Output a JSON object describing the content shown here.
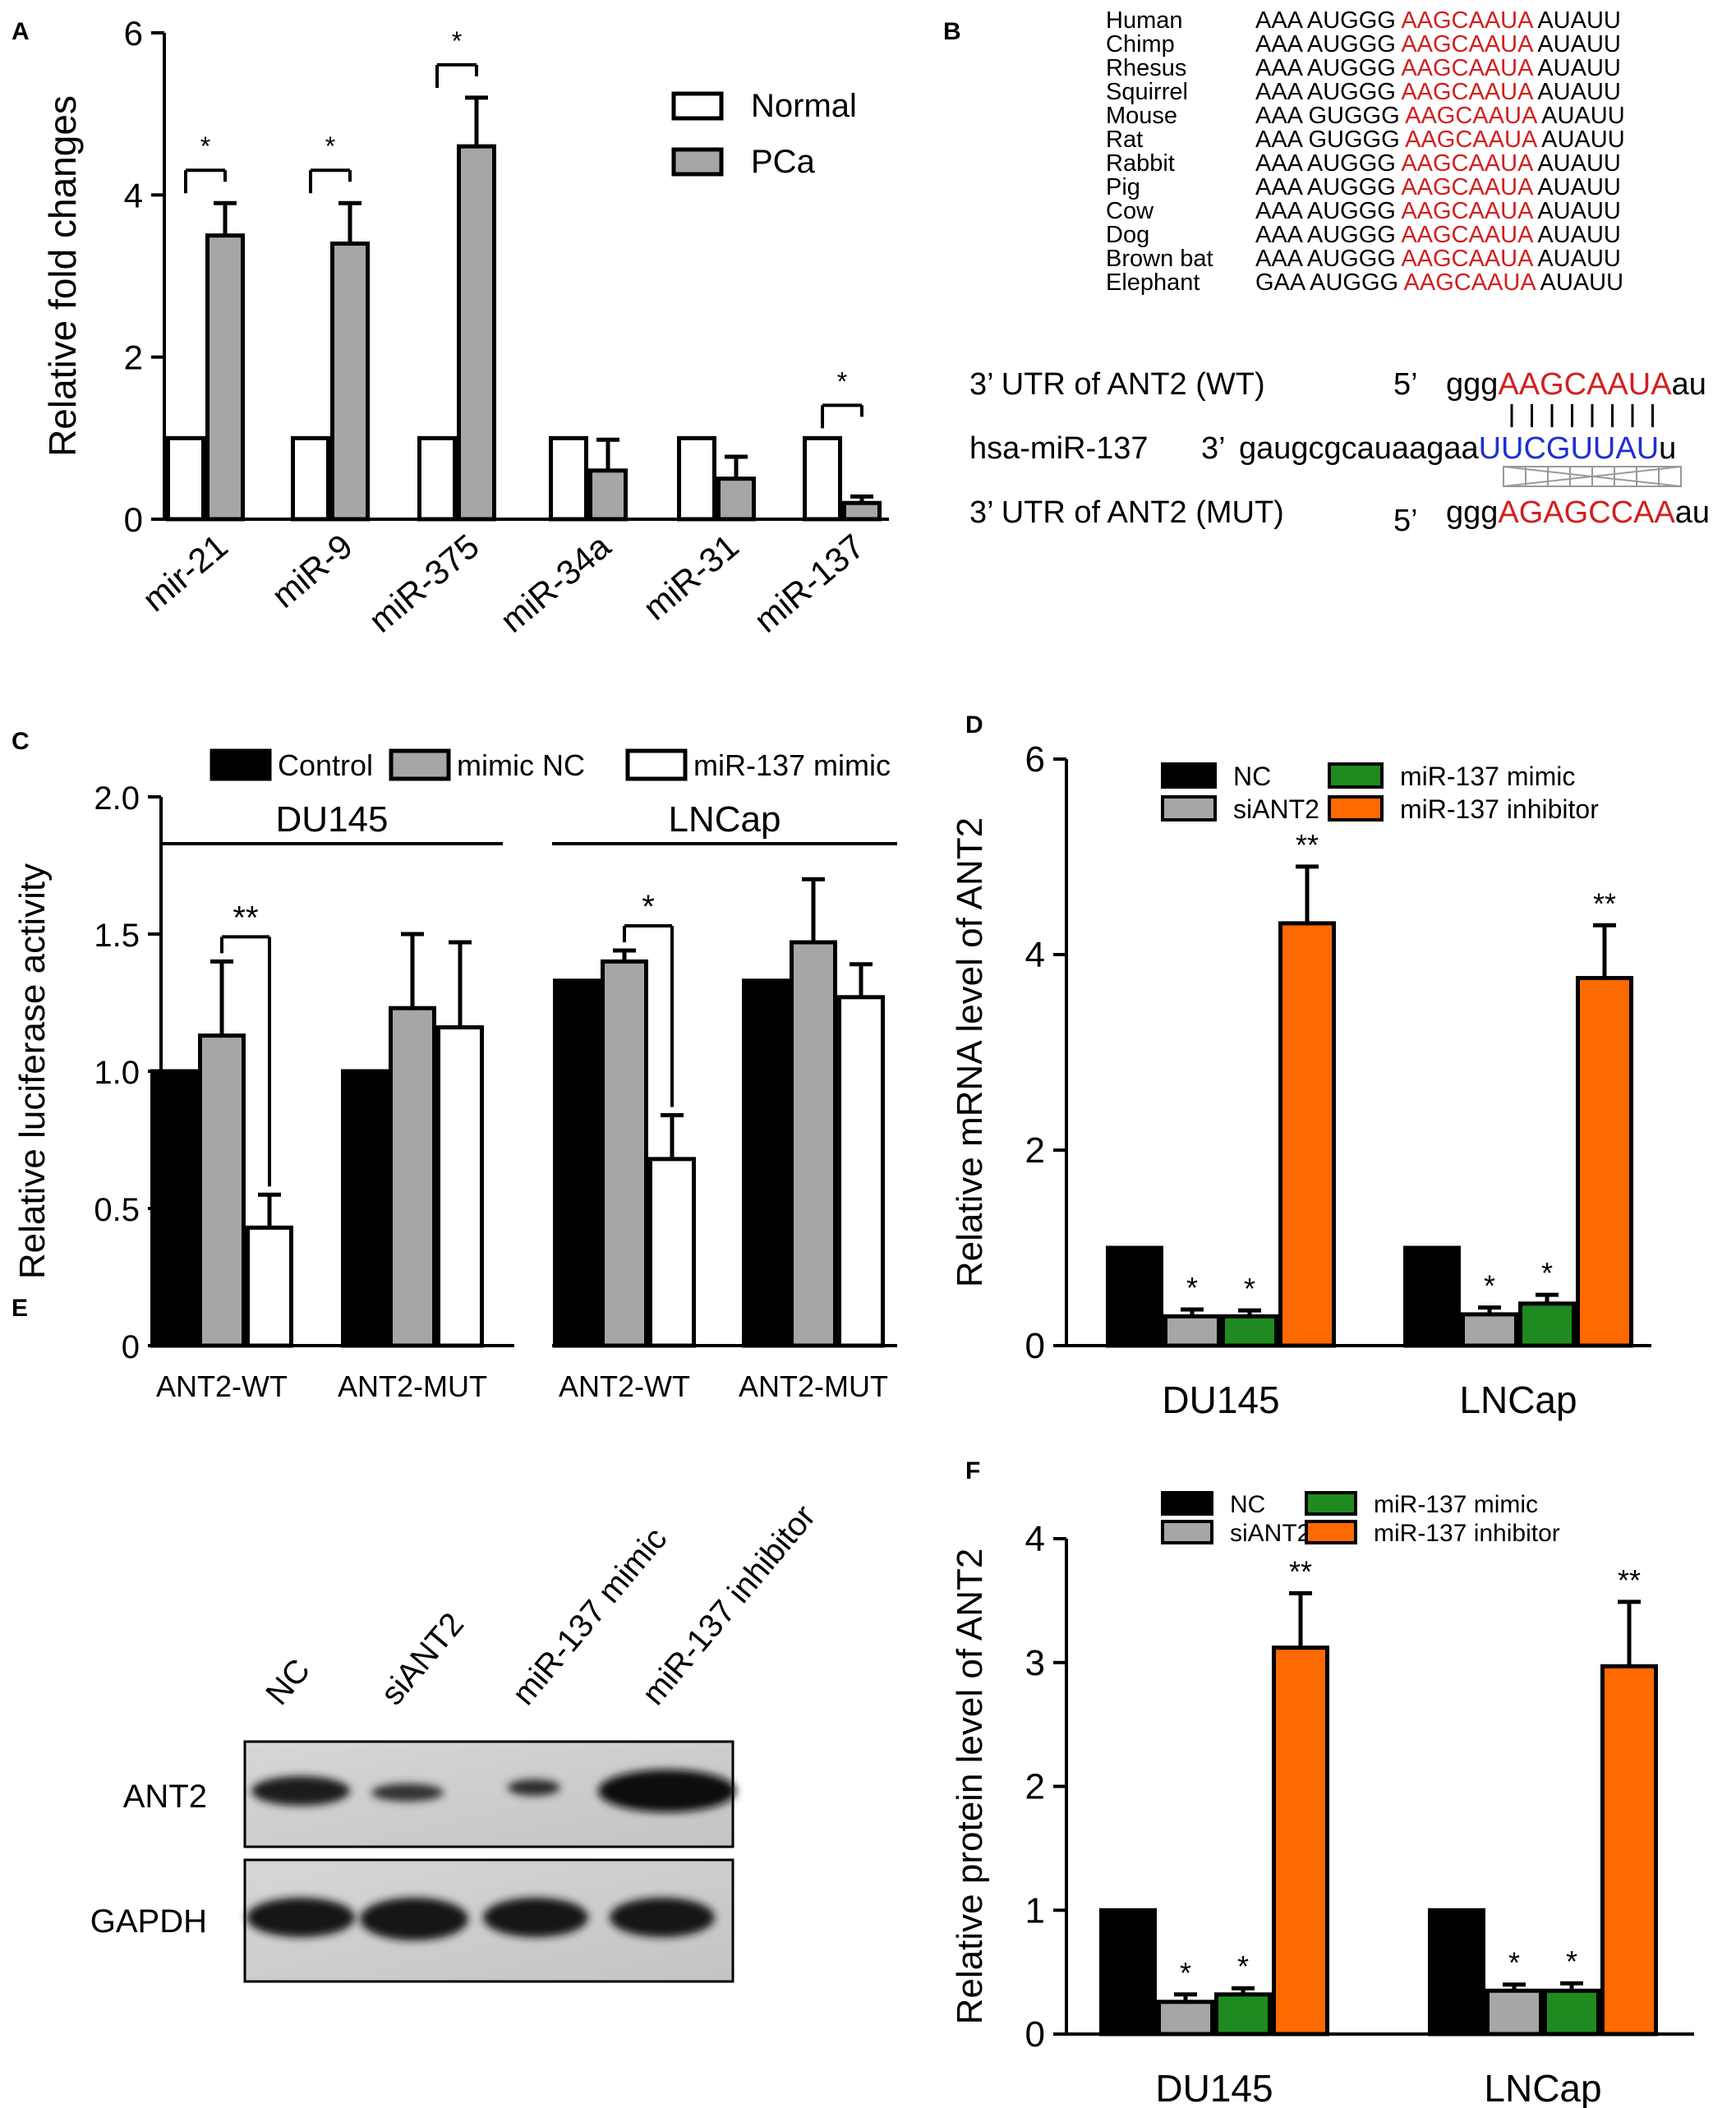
{
  "figure": {
    "panel_labels": [
      "A",
      "B",
      "C",
      "D",
      "E",
      "F"
    ]
  },
  "panel_b": {
    "species": [
      "Human",
      "Chimp",
      "Rhesus",
      "Squirrel",
      "Mouse",
      "Rat",
      "Rabbit",
      "Pig",
      "Cow",
      "Dog",
      "Brown bat",
      "Elephant"
    ],
    "sequences": [
      {
        "pre": "AAA AUGGG ",
        "seed": "AAGCAAUA",
        "post": " AUAUU"
      },
      {
        "pre": "AAA AUGGG ",
        "seed": "AAGCAAUA",
        "post": " AUAUU"
      },
      {
        "pre": "AAA AUGGG ",
        "seed": "AAGCAAUA",
        "post": " AUAUU"
      },
      {
        "pre": "AAA AUGGG ",
        "seed": "AAGCAAUA",
        "post": " AUAUU"
      },
      {
        "pre": "AAA GUGGG ",
        "seed": "AAGCAAUA",
        "post": " AUAUU"
      },
      {
        "pre": "AAA GUGGG ",
        "seed": "AAGCAAUA",
        "post": " AUAUU"
      },
      {
        "pre": "AAA AUGGG ",
        "seed": "AAGCAAUA",
        "post": " AUAUU"
      },
      {
        "pre": "AAA AUGGG ",
        "seed": "AAGCAAUA",
        "post": " AUAUU"
      },
      {
        "pre": "AAA AUGGG ",
        "seed": "AAGCAAUA",
        "post": " AUAUU"
      },
      {
        "pre": "AAA AUGGG ",
        "seed": "AAGCAAUA",
        "post": " AUAUU"
      },
      {
        "pre": "AAA AUGGG ",
        "seed": "AAGCAAUA",
        "post": " AUAUU"
      },
      {
        "pre": "GAA AUGGG ",
        "seed": "AAGCAAUA",
        "post": " AUAUU"
      }
    ],
    "binding": {
      "wt_label": "3’ UTR of ANT2 (WT)",
      "wt_prime": "5’",
      "wt_pre": "ggg",
      "wt_seed": "AAGCAAUA",
      "wt_post": "au",
      "mir_label": "hsa-miR-137",
      "mir_prime": "3’",
      "mir_pre": "gaugcgcauaagaa",
      "mir_seed": "UUCGUUAU",
      "mir_post": "u",
      "mut_label": "3’ UTR of ANT2 (MUT)",
      "mut_prime": "5’",
      "mut_pre": "ggg",
      "mut_seed": "AGAGCCAA",
      "mut_post": "au"
    },
    "colors": {
      "seed": "#d21f1f",
      "mir": "#1f2fd2"
    }
  },
  "panel_e": {
    "lanes": [
      "NC",
      "siANT2",
      "miR-137 mimic",
      "miR-137 inhibitor"
    ],
    "rows": [
      "ANT2",
      "GAPDH"
    ]
  },
  "chart_data": [
    {
      "panel": "A",
      "type": "bar",
      "ylabel": "Relative fold changes",
      "ylim": [
        0,
        6
      ],
      "yticks": [
        "0",
        "2",
        "4",
        "6"
      ],
      "categories": [
        "mir-21",
        "miR-9",
        "miR-375",
        "miR-34a",
        "miR-31",
        "miR-137"
      ],
      "series": [
        {
          "name": "Normal",
          "color": "#ffffff",
          "values": [
            1,
            1,
            1,
            1,
            1,
            1
          ],
          "errors": [
            0,
            0,
            0,
            0,
            0,
            0
          ]
        },
        {
          "name": "PCa",
          "color": "#a6a6a6",
          "values": [
            3.5,
            3.4,
            4.6,
            0.6,
            0.5,
            0.2
          ],
          "errors": [
            0.4,
            0.5,
            0.6,
            0.38,
            0.27,
            0.08
          ]
        }
      ],
      "significance": [
        "*",
        "*",
        "*",
        "",
        "",
        "*"
      ]
    },
    {
      "panel": "C",
      "type": "bar",
      "ylabel": "Relative luciferase activity",
      "ylim": [
        0,
        2.0
      ],
      "yticks": [
        "0",
        "0.5",
        "1.0",
        "1.5",
        "2.0"
      ],
      "groups": [
        "DU145",
        "LNCap"
      ],
      "categories": [
        "ANT2-WT",
        "ANT2-MUT",
        "ANT2-WT",
        "ANT2-MUT"
      ],
      "series": [
        {
          "name": "Control",
          "color": "#000000",
          "values": [
            1.0,
            1.0,
            1.33,
            1.33
          ],
          "errors": [
            0,
            0,
            0,
            0
          ]
        },
        {
          "name": "mimic NC",
          "color": "#a6a6a6",
          "values": [
            1.13,
            1.23,
            1.4,
            1.47
          ],
          "errors": [
            0.27,
            0.27,
            0.04,
            0.23
          ]
        },
        {
          "name": "miR-137 mimic",
          "color": "#ffffff",
          "values": [
            0.43,
            1.16,
            0.68,
            1.27
          ],
          "errors": [
            0.12,
            0.31,
            0.16,
            0.12
          ]
        }
      ],
      "significance": [
        {
          "category": 0,
          "from": 1,
          "to": 2,
          "label": "**"
        },
        {
          "category": 2,
          "from": 1,
          "to": 2,
          "label": "*"
        }
      ]
    },
    {
      "panel": "D",
      "type": "bar",
      "ylabel": "Relative mRNA level of ANT2",
      "ylim": [
        0,
        6
      ],
      "yticks": [
        "0",
        "2",
        "4",
        "6"
      ],
      "categories": [
        "DU145",
        "LNCap"
      ],
      "series": [
        {
          "name": "NC",
          "color": "#000000",
          "values": [
            1.0,
            1.0
          ],
          "errors": [
            0,
            0
          ],
          "sig": [
            "",
            ""
          ]
        },
        {
          "name": "siANT2",
          "color": "#a6a6a6",
          "values": [
            0.3,
            0.32
          ],
          "errors": [
            0.07,
            0.07
          ],
          "sig": [
            "*",
            "*"
          ]
        },
        {
          "name": "miR-137 mimic",
          "color": "#1f8a1f",
          "values": [
            0.3,
            0.43
          ],
          "errors": [
            0.06,
            0.09
          ],
          "sig": [
            "*",
            "*"
          ]
        },
        {
          "name": "miR-137 inhibitor",
          "color": "#ff6a00",
          "values": [
            4.32,
            3.76
          ],
          "errors": [
            0.58,
            0.54
          ],
          "sig": [
            "**",
            "**"
          ]
        }
      ]
    },
    {
      "panel": "F",
      "type": "bar",
      "ylabel": "Relative protein level of ANT2",
      "ylim": [
        0,
        4
      ],
      "yticks": [
        "0",
        "1",
        "2",
        "3",
        "4"
      ],
      "categories": [
        "DU145",
        "LNCap"
      ],
      "series": [
        {
          "name": "NC",
          "color": "#000000",
          "values": [
            1.0,
            1.0
          ],
          "errors": [
            0,
            0
          ],
          "sig": [
            "",
            ""
          ]
        },
        {
          "name": "siANT2",
          "color": "#a6a6a6",
          "values": [
            0.26,
            0.35
          ],
          "errors": [
            0.06,
            0.05
          ],
          "sig": [
            "*",
            "*"
          ]
        },
        {
          "name": "miR-137 mimic",
          "color": "#1f8a1f",
          "values": [
            0.32,
            0.35
          ],
          "errors": [
            0.05,
            0.06
          ],
          "sig": [
            "*",
            "*"
          ]
        },
        {
          "name": "miR-137 inhibitor",
          "color": "#ff6a00",
          "values": [
            3.12,
            2.97
          ],
          "errors": [
            0.44,
            0.52
          ],
          "sig": [
            "**",
            "**"
          ]
        }
      ]
    }
  ]
}
